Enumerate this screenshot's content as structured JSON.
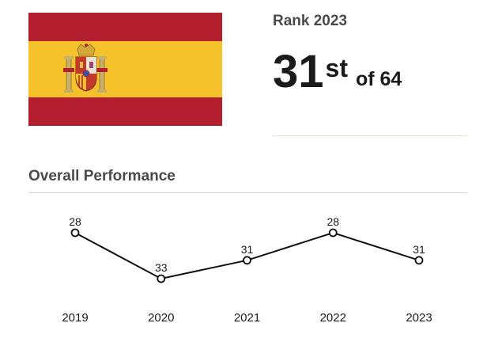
{
  "rank": {
    "label": "Rank 2023",
    "position": "31",
    "suffix": "st",
    "of_text": "of 64"
  },
  "section": {
    "title": "Overall Performance"
  },
  "colors": {
    "flag_red": "#b41f30",
    "flag_yellow": "#f5c22c",
    "line": "#111111",
    "point_fill": "#ffffff",
    "text": "#1a1a1a"
  },
  "chart_data": {
    "type": "line",
    "title": "",
    "xlabel": "",
    "ylabel": "",
    "categories": [
      "2019",
      "2020",
      "2021",
      "2022",
      "2023"
    ],
    "series": [
      {
        "values": [
          28,
          33,
          31,
          28,
          31
        ]
      }
    ],
    "y_inverted": true,
    "grid": false,
    "data_labels": true
  }
}
